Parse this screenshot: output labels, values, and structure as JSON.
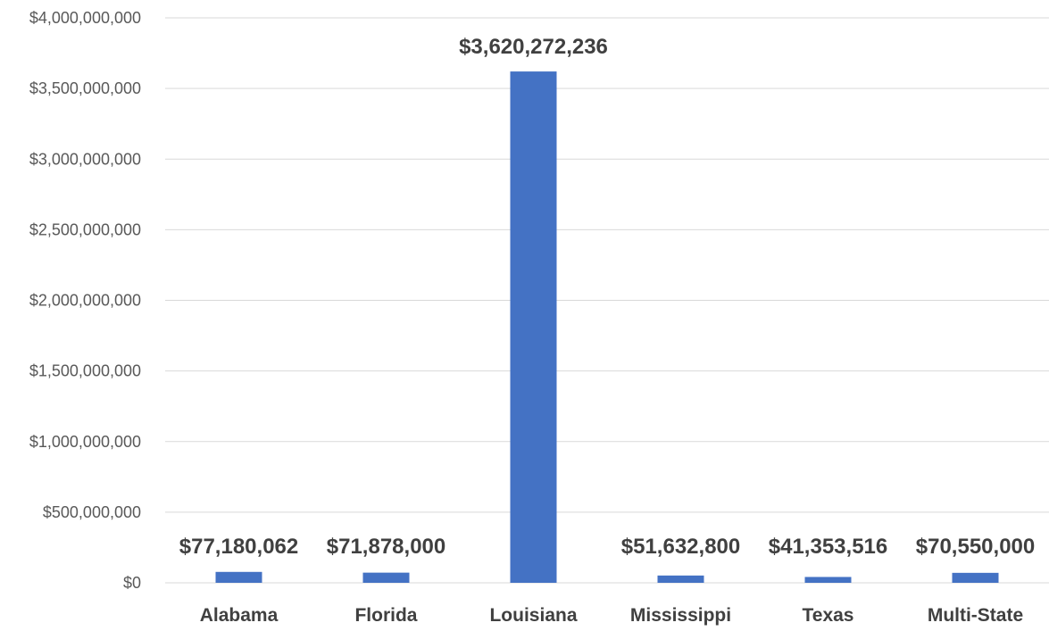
{
  "chart_data": {
    "type": "bar",
    "title": "",
    "xlabel": "",
    "ylabel": "",
    "categories": [
      "Alabama",
      "Florida",
      "Louisiana",
      "Mississippi",
      "Texas",
      "Multi-State"
    ],
    "values": [
      77180062,
      71878000,
      3620272236,
      51632800,
      41353516,
      70550000
    ],
    "data_labels": [
      "$77,180,062",
      "$71,878,000",
      "$3,620,272,236",
      "$51,632,800",
      "$41,353,516",
      "$70,550,000"
    ],
    "ylim": [
      0,
      4000000000
    ],
    "yticks": [
      0,
      500000000,
      1000000000,
      1500000000,
      2000000000,
      2500000000,
      3000000000,
      3500000000,
      4000000000
    ],
    "ytick_labels": [
      "$0",
      "$500,000,000",
      "$1,000,000,000",
      "$1,500,000,000",
      "$2,000,000,000",
      "$2,500,000,000",
      "$3,000,000,000",
      "$3,500,000,000",
      "$4,000,000,000"
    ],
    "grid": true,
    "legend": "none",
    "colors": {
      "bar": "#4472C4",
      "gridline": "#D9D9D9",
      "text": "#404040",
      "tick_text": "#595959"
    }
  }
}
